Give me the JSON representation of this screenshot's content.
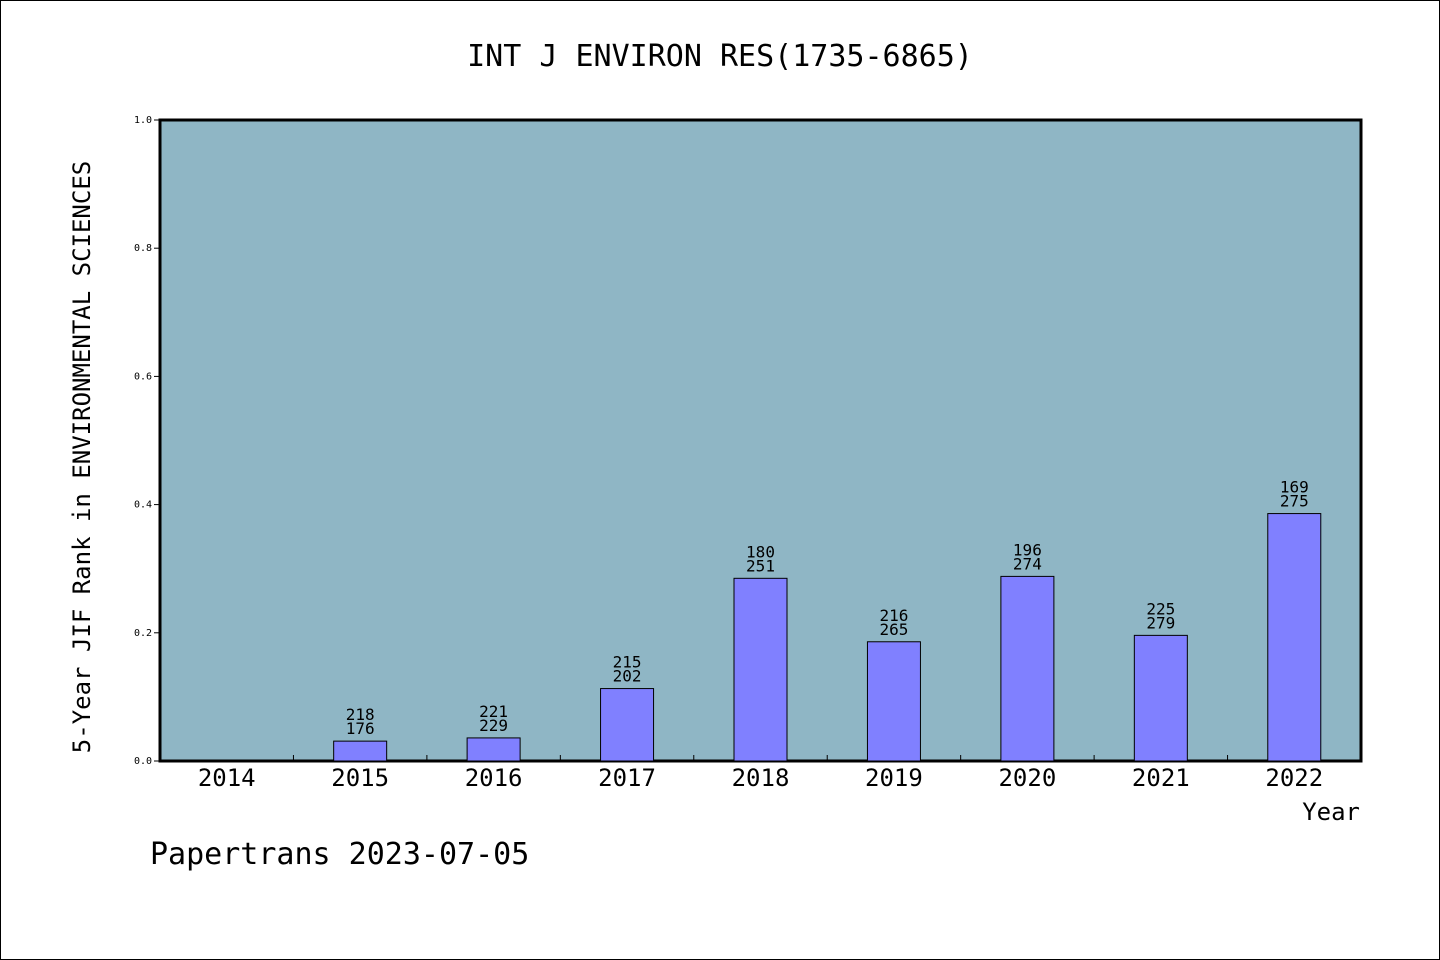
{
  "chart_data": {
    "type": "bar",
    "title": "INT J ENVIRON RES(1735-6865)",
    "xlabel": "Year",
    "ylabel": "5-Year JIF Rank in ENVIRONMENTAL SCIENCES",
    "ylim": [
      0,
      1.0
    ],
    "yticks": [
      "0.0",
      "0.2",
      "0.4",
      "0.6",
      "0.8",
      "1.0"
    ],
    "categories": [
      "2014",
      "2015",
      "2016",
      "2017",
      "2018",
      "2019",
      "2020",
      "2021",
      "2022"
    ],
    "values": [
      null,
      0.031,
      0.036,
      0.113,
      0.285,
      0.186,
      0.288,
      0.196,
      0.386
    ],
    "labels_top": [
      "",
      "218",
      "221",
      "215",
      "180",
      "216",
      "196",
      "225",
      "169"
    ],
    "labels_bottom": [
      "",
      "176",
      "229",
      "202",
      "251",
      "265",
      "274",
      "279",
      "275"
    ],
    "grid": false,
    "plot_background": "#8fb6c5",
    "bar_color": "#8080ff"
  },
  "footer": "Papertrans 2023-07-05"
}
